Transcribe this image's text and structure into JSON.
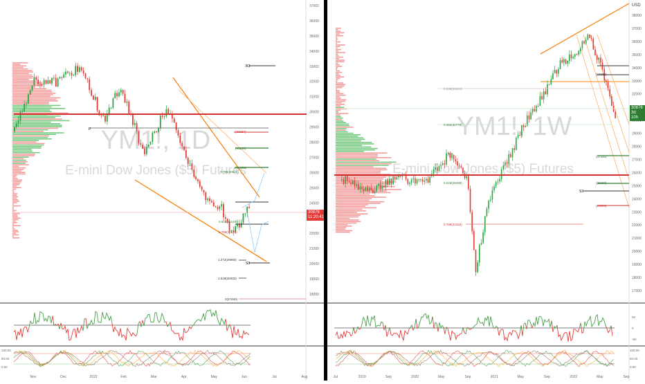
{
  "left": {
    "watermark_symbol": "YM1!, 1D",
    "watermark_name": "E-mini Dow Jones ($5) Futures",
    "price_badge": "30876",
    "price_badge_time": "11:20:41",
    "price_axis": [
      "37000",
      "36000",
      "35000",
      "34000",
      "33000",
      "32000",
      "31000",
      "30000",
      "29000",
      "28000",
      "27000",
      "26000",
      "25000",
      "24000",
      "23000",
      "22000",
      "21000",
      "20000",
      "19000",
      "18000"
    ],
    "time_axis": [
      "Nov",
      "Dec",
      "2022",
      "Feb",
      "Mar",
      "Apr",
      "May",
      "Jun",
      "Jul",
      "Aug"
    ],
    "annotations": {
      "r3": "R3",
      "p": "P",
      "s3": "S3",
      "lvl_top": "(33957)",
      "lvl_a": "(31130)",
      "fib_1": "1(31020)",
      "fib_0786": "0.786(30540)",
      "fib_0618": "0.618(30140)",
      "fib_0786b": "0.786(30128)",
      "fib_1272": "1.272(29060)",
      "fib_1618": "1.618(28303)",
      "fib_2": "2(27460)"
    }
  },
  "right": {
    "watermark_symbol": "YM1!, 1W",
    "watermark_name": "E-mini Dow Jones ($5) Futures",
    "currency": "USD",
    "price_badge": "30876",
    "price_badge_sub": "3d 10h",
    "price_axis": [
      "38000",
      "37000",
      "36000",
      "35000",
      "34000",
      "33000",
      "32000",
      "31000",
      "30000",
      "29000",
      "28000",
      "27000",
      "26000",
      "25000",
      "24000",
      "23000",
      "22000",
      "21000",
      "20000",
      "19000",
      "18000",
      "17000"
    ],
    "time_axis": [
      "Jul",
      "2019",
      "Sep",
      "2020",
      "May",
      "Sep",
      "2021",
      "May",
      "Sep",
      "2022",
      "May",
      "Sep"
    ],
    "annotations": {
      "fib_0236": "0.236(35044)",
      "fib_0382": "0.382(32779)",
      "fib_05": "0.5",
      "fib_0618": "0.618(25299)",
      "fib_0786": "0.786(23163)",
      "lvl_a": "(37325)",
      "lvl_b": "(25299)",
      "lvl_c": "(23503)",
      "s3": "S3",
      "lvl_34630": "(34630)"
    }
  },
  "oscillator": {
    "left_axis": [
      "100.00",
      "50.00",
      "0.00"
    ],
    "right_axis": [
      "100.00",
      "50.00",
      "0.00"
    ],
    "rsi_axis": [
      "50",
      "0",
      "-50"
    ]
  },
  "colors": {
    "bull": "#26a641",
    "bear": "#e53935",
    "orange": "#f57c00",
    "profile_red": "#f28b8b",
    "profile_green": "#5fbf6b",
    "dark_line": "#000000"
  }
}
